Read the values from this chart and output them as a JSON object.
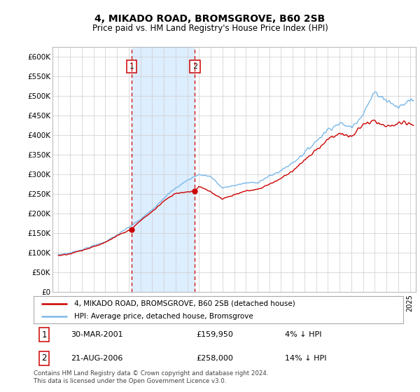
{
  "title": "4, MIKADO ROAD, BROMSGROVE, B60 2SB",
  "subtitle": "Price paid vs. HM Land Registry's House Price Index (HPI)",
  "ylim": [
    0,
    625000
  ],
  "yticks": [
    0,
    50000,
    100000,
    150000,
    200000,
    250000,
    300000,
    350000,
    400000,
    450000,
    500000,
    550000,
    600000
  ],
  "ytick_labels": [
    "£0",
    "£50K",
    "£100K",
    "£150K",
    "£200K",
    "£250K",
    "£300K",
    "£350K",
    "£400K",
    "£450K",
    "£500K",
    "£550K",
    "£600K"
  ],
  "xlim_start": 1994.5,
  "xlim_end": 2025.5,
  "purchase1_date": 2001.25,
  "purchase1_price": 159950,
  "purchase1_label": "1",
  "purchase2_date": 2006.64,
  "purchase2_price": 258000,
  "purchase2_label": "2",
  "shade_color": "#ddeeff",
  "dashed_color": "#cc0000",
  "legend_line1": "4, MIKADO ROAD, BROMSGROVE, B60 2SB (detached house)",
  "legend_line2": "HPI: Average price, detached house, Bromsgrove",
  "footer": "Contains HM Land Registry data © Crown copyright and database right 2024.\nThis data is licensed under the Open Government Licence v3.0.",
  "hpi_color": "#7ab8e8",
  "price_color": "#cc0000",
  "hpi_knots_t": [
    1995,
    1996,
    1997,
    1998,
    1999,
    2000,
    2001,
    2002,
    2003,
    2004,
    2005,
    2006,
    2007,
    2008,
    2009,
    2010,
    2011,
    2012,
    2013,
    2014,
    2015,
    2016,
    2017,
    2018,
    2019,
    2020,
    2021,
    2022,
    2023,
    2024,
    2025
  ],
  "hpi_knots_v": [
    95000,
    100000,
    108000,
    118000,
    128000,
    145000,
    165000,
    185000,
    210000,
    240000,
    265000,
    285000,
    300000,
    295000,
    265000,
    272000,
    278000,
    280000,
    295000,
    310000,
    330000,
    355000,
    385000,
    415000,
    430000,
    420000,
    455000,
    510000,
    490000,
    470000,
    490000
  ],
  "price_knots_t": [
    1995,
    1996,
    1997,
    1998,
    1999,
    2000,
    2001.25,
    2002,
    2003,
    2004,
    2005,
    2006.64,
    2007,
    2008,
    2009,
    2010,
    2011,
    2012,
    2013,
    2014,
    2015,
    2016,
    2017,
    2018,
    2019,
    2020,
    2021,
    2022,
    2023,
    2024,
    2025
  ],
  "price_knots_v": [
    93000,
    98000,
    106000,
    116000,
    126000,
    143000,
    159950,
    182000,
    205000,
    232000,
    252000,
    258000,
    270000,
    255000,
    238000,
    248000,
    258000,
    262000,
    275000,
    290000,
    310000,
    335000,
    362000,
    390000,
    405000,
    395000,
    428000,
    435000,
    420000,
    430000,
    428000
  ]
}
